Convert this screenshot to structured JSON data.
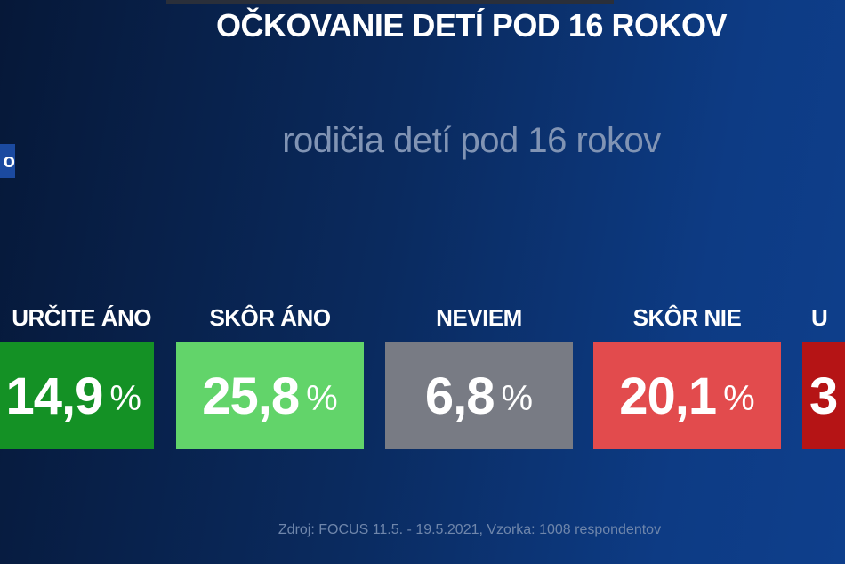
{
  "title": "OČKOVANIE DETÍ POD 16 ROKOV",
  "subtitle": "rodičia detí pod 16 rokov",
  "source": "Zdroj: FOCUS 11.5. - 19.5.2021, Vzorka: 1008 respondentov",
  "percent_sign": "%",
  "chart_data": {
    "type": "bar",
    "title": "OČKOVANIE DETÍ POD 16 ROKOV",
    "subtitle": "rodičia detí pod 16 rokov",
    "categories": [
      "URČITE ÁNO",
      "SKÔR ÁNO",
      "NEVIEM",
      "SKÔR NIE",
      "U"
    ],
    "labels": [
      "14,9",
      "25,8",
      "6,8",
      "20,1",
      "3"
    ],
    "values": [
      14.9,
      25.8,
      6.8,
      20.1,
      null
    ],
    "unit": "%",
    "colors": [
      "#149125",
      "#62d46a",
      "#787b84",
      "#e24b4d",
      "#b51415"
    ]
  }
}
